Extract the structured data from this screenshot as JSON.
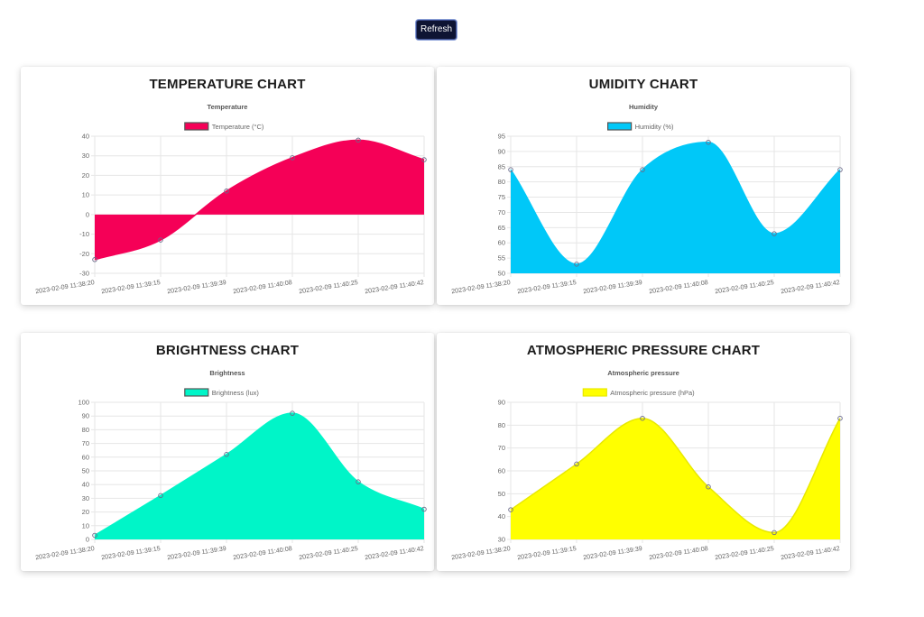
{
  "toolbar": {
    "refresh_label": "Refresh"
  },
  "cards": [
    {
      "title": "TEMPERATURE CHART"
    },
    {
      "title": "UMIDITY CHART"
    },
    {
      "title": "BRIGHTNESS CHART"
    },
    {
      "title": "ATMOSPHERIC PRESSURE CHART"
    }
  ],
  "chart_data": [
    {
      "type": "area",
      "title": "Temperature",
      "x": [
        "2023-02-09 11:38:20",
        "2023-02-09 11:39:15",
        "2023-02-09 11:39:39",
        "2023-02-09 11:40:08",
        "2023-02-09 11:40:25",
        "2023-02-09 11:40:42"
      ],
      "series": [
        {
          "name": "Temperature (°C)",
          "values": [
            -23,
            -13,
            12,
            29,
            38,
            28
          ]
        }
      ],
      "ylim": [
        -30,
        40
      ],
      "yticks": [
        40,
        30,
        20,
        10,
        0,
        -10,
        -20,
        -30
      ],
      "fill": "#f50057",
      "border": "#f50057",
      "fill_baseline": 0,
      "grid": true,
      "legend": "top"
    },
    {
      "type": "area",
      "title": "Humidity",
      "x": [
        "2023-02-09 11:38:20",
        "2023-02-09 11:39:15",
        "2023-02-09 11:39:39",
        "2023-02-09 11:40:08",
        "2023-02-09 11:40:25",
        "2023-02-09 11:40:42"
      ],
      "series": [
        {
          "name": "Humidity (%)",
          "values": [
            84,
            53,
            84,
            93,
            63,
            84
          ]
        }
      ],
      "ylim": [
        50,
        95
      ],
      "yticks": [
        95,
        90,
        85,
        80,
        75,
        70,
        65,
        60,
        55,
        50
      ],
      "fill": "#00c8f8",
      "border": "#00c8f8",
      "fill_baseline": "bottom",
      "grid": true,
      "legend": "top"
    },
    {
      "type": "area",
      "title": "Brightness",
      "x": [
        "2023-02-09 11:38:20",
        "2023-02-09 11:39:15",
        "2023-02-09 11:39:39",
        "2023-02-09 11:40:08",
        "2023-02-09 11:40:25",
        "2023-02-09 11:40:42"
      ],
      "series": [
        {
          "name": "Brightness (lux)",
          "values": [
            3,
            32,
            62,
            92,
            42,
            22
          ]
        }
      ],
      "ylim": [
        0,
        100
      ],
      "yticks": [
        100,
        90,
        80,
        70,
        60,
        50,
        40,
        30,
        20,
        10,
        0
      ],
      "fill": "#00f5c8",
      "border": "#00f5c8",
      "fill_baseline": "bottom",
      "grid": true,
      "legend": "top"
    },
    {
      "type": "area",
      "title": "Atmospheric pressure",
      "x": [
        "2023-02-09 11:38:20",
        "2023-02-09 11:39:15",
        "2023-02-09 11:39:39",
        "2023-02-09 11:40:08",
        "2023-02-09 11:40:25",
        "2023-02-09 11:40:42"
      ],
      "series": [
        {
          "name": "Atmospheric pressure (hPa)",
          "values": [
            43,
            63,
            83,
            53,
            33,
            83
          ]
        }
      ],
      "ylim": [
        30,
        90
      ],
      "yticks": [
        90,
        80,
        70,
        60,
        50,
        40,
        30
      ],
      "fill": "#ffff00",
      "border": "#e8e800",
      "fill_baseline": "bottom",
      "grid": true,
      "legend": "top"
    }
  ]
}
